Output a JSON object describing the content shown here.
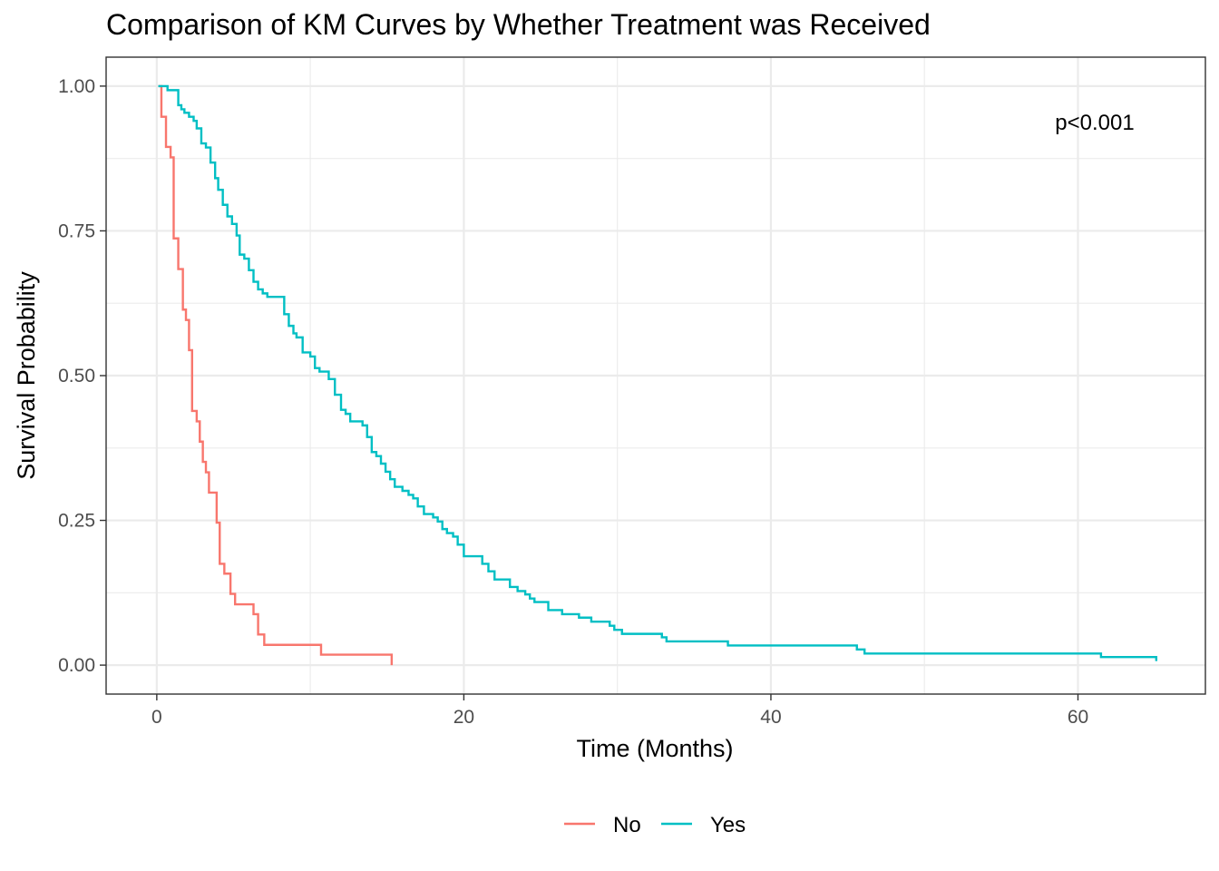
{
  "chart_data": {
    "type": "line",
    "title": "Comparison of KM Curves by Whether Treatment was Received",
    "xlabel": "Time (Months)",
    "ylabel": "Survival Probability",
    "xlim": [
      -3.3,
      68.3
    ],
    "ylim": [
      -0.05,
      1.05
    ],
    "x_ticks": [
      0,
      20,
      40,
      60
    ],
    "x_tick_labels": [
      "0",
      "20",
      "40",
      "60"
    ],
    "y_ticks": [
      0,
      0.25,
      0.5,
      0.75,
      1
    ],
    "y_tick_labels": [
      "0.00",
      "0.25",
      "0.50",
      "0.75",
      "1.00"
    ],
    "x_minor_ticks": [
      10,
      30,
      50
    ],
    "y_minor_ticks": [
      0.125,
      0.375,
      0.625,
      0.875
    ],
    "grid": true,
    "legend_position": "bottom",
    "annotation": "p<0.001",
    "step": true,
    "series": [
      {
        "name": "No",
        "color": "#F8766D",
        "x": [
          0.1,
          0.3,
          0.6,
          0.9,
          1.1,
          1.4,
          1.7,
          1.9,
          2.1,
          2.3,
          2.6,
          2.8,
          3.0,
          3.2,
          3.4,
          3.9,
          4.1,
          4.4,
          4.8,
          5.1,
          5.3,
          6.3,
          6.6,
          7.0,
          10.7,
          15.3,
          15.3
        ],
        "y": [
          1.0,
          0.947,
          0.895,
          0.877,
          0.737,
          0.684,
          0.614,
          0.596,
          0.544,
          0.439,
          0.421,
          0.386,
          0.351,
          0.333,
          0.298,
          0.246,
          0.175,
          0.158,
          0.123,
          0.105,
          0.105,
          0.088,
          0.053,
          0.035,
          0.018,
          0.018,
          0.0
        ]
      },
      {
        "name": "Yes",
        "color": "#00BFC4",
        "x": [
          0.1,
          0.7,
          1.4,
          1.6,
          1.8,
          2.1,
          2.4,
          2.6,
          2.9,
          3.2,
          3.5,
          3.8,
          4.0,
          4.3,
          4.6,
          4.9,
          5.2,
          5.4,
          5.7,
          6.0,
          6.3,
          6.6,
          6.9,
          7.2,
          8.3,
          8.6,
          8.9,
          9.1,
          9.5,
          10.0,
          10.3,
          10.6,
          11.2,
          11.6,
          12.0,
          12.3,
          12.6,
          13.4,
          13.7,
          14.0,
          14.3,
          14.6,
          14.9,
          15.2,
          15.5,
          16.0,
          16.4,
          16.7,
          17.0,
          17.4,
          18.0,
          18.3,
          18.6,
          18.9,
          19.3,
          19.6,
          20.0,
          21.2,
          21.6,
          22.0,
          23.0,
          23.5,
          24.0,
          24.3,
          24.6,
          25.5,
          26.4,
          27.5,
          28.3,
          29.5,
          29.8,
          30.3,
          32.9,
          33.2,
          37.2,
          45.6,
          46.1,
          61.5,
          65.1
        ],
        "y": [
          1.0,
          0.993,
          0.967,
          0.96,
          0.954,
          0.947,
          0.94,
          0.927,
          0.901,
          0.894,
          0.868,
          0.841,
          0.821,
          0.795,
          0.775,
          0.762,
          0.742,
          0.709,
          0.702,
          0.682,
          0.662,
          0.649,
          0.642,
          0.636,
          0.606,
          0.586,
          0.573,
          0.566,
          0.54,
          0.533,
          0.513,
          0.507,
          0.494,
          0.467,
          0.441,
          0.434,
          0.421,
          0.414,
          0.394,
          0.368,
          0.361,
          0.348,
          0.334,
          0.321,
          0.308,
          0.301,
          0.294,
          0.288,
          0.274,
          0.261,
          0.255,
          0.248,
          0.235,
          0.228,
          0.222,
          0.208,
          0.188,
          0.175,
          0.162,
          0.148,
          0.135,
          0.128,
          0.122,
          0.115,
          0.109,
          0.095,
          0.088,
          0.082,
          0.075,
          0.068,
          0.061,
          0.054,
          0.048,
          0.041,
          0.034,
          0.027,
          0.02,
          0.014,
          0.007
        ]
      }
    ]
  }
}
